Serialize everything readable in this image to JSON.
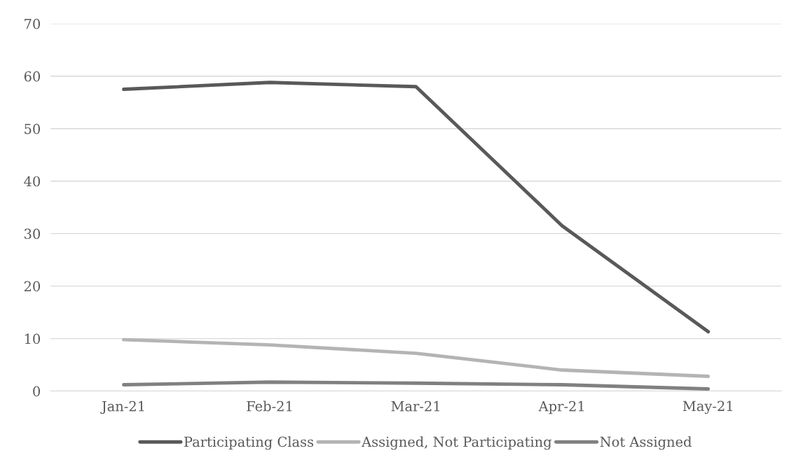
{
  "chart_data": {
    "type": "line",
    "categories": [
      "Jan-21",
      "Feb-21",
      "Mar-21",
      "Apr-21",
      "May-21"
    ],
    "series": [
      {
        "name": "Participating Class",
        "color": "#595959",
        "values": [
          57.5,
          58.8,
          58.0,
          31.5,
          11.3
        ]
      },
      {
        "name": "Assigned, Not Participating",
        "color": "#b4b4b4",
        "values": [
          9.8,
          8.8,
          7.2,
          4.0,
          2.8
        ]
      },
      {
        "name": "Not Assigned",
        "color": "#808080",
        "values": [
          1.2,
          1.7,
          1.5,
          1.2,
          0.4
        ]
      }
    ],
    "ylim": [
      0,
      70
    ],
    "yticks": [
      0,
      10,
      20,
      30,
      40,
      50,
      60,
      70
    ],
    "grid": "y",
    "legend": "bottom",
    "marker": "none",
    "line_style": "solid"
  }
}
